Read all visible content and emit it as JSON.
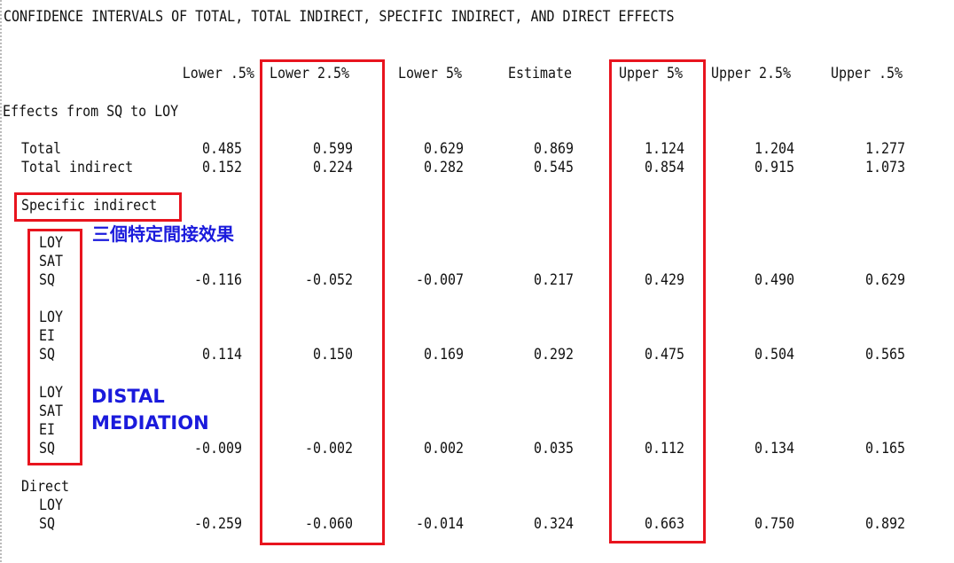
{
  "title": "CONFIDENCE INTERVALS OF TOTAL, TOTAL INDIRECT, SPECIFIC INDIRECT, AND DIRECT EFFECTS",
  "columns": [
    "Lower .5%",
    "Lower 2.5%",
    "Lower 5%",
    "Estimate",
    "Upper 5%",
    "Upper 2.5%",
    "Upper .5%"
  ],
  "section_label": "Effects from SQ to LOY",
  "rows": {
    "total": {
      "label": "Total",
      "values": [
        "0.485",
        "0.599",
        "0.629",
        "0.869",
        "1.124",
        "1.204",
        "1.277"
      ]
    },
    "total_indirect": {
      "label": "Total indirect",
      "values": [
        "0.152",
        "0.224",
        "0.282",
        "0.545",
        "0.854",
        "0.915",
        "1.073"
      ]
    },
    "specific_label": "Specific indirect",
    "path1": {
      "lines": [
        "LOY",
        "SAT",
        "SQ"
      ],
      "values": [
        "-0.116",
        "-0.052",
        "-0.007",
        "0.217",
        "0.429",
        "0.490",
        "0.629"
      ]
    },
    "path2": {
      "lines": [
        "LOY",
        "EI",
        "SQ"
      ],
      "values": [
        "0.114",
        "0.150",
        "0.169",
        "0.292",
        "0.475",
        "0.504",
        "0.565"
      ]
    },
    "path3": {
      "lines": [
        "LOY",
        "SAT",
        "EI",
        "SQ"
      ],
      "values": [
        "-0.009",
        "-0.002",
        "0.002",
        "0.035",
        "0.112",
        "0.134",
        "0.165"
      ]
    },
    "direct_label": "Direct",
    "direct": {
      "lines": [
        "LOY",
        "SQ"
      ],
      "values": [
        "-0.259",
        "-0.060",
        "-0.014",
        "0.324",
        "0.663",
        "0.750",
        "0.892"
      ]
    }
  },
  "annotations": {
    "chinese_note": "三個特定間接效果",
    "distal_line1": "DISTAL",
    "distal_line2": "MEDIATION"
  },
  "colors": {
    "highlight_box": "#e8141e",
    "annotation_text": "#1a1adc"
  }
}
